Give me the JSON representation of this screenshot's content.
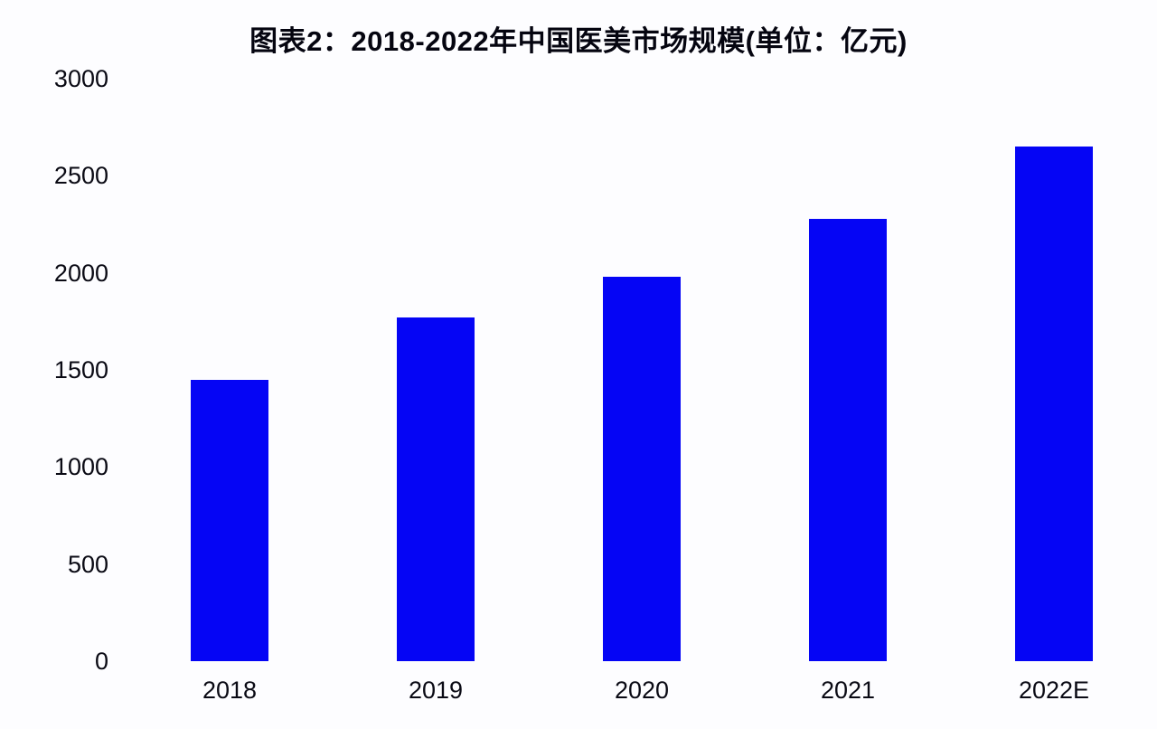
{
  "page": {
    "background_color": "#fdfdff",
    "text_color": "#0a0a14"
  },
  "chart_data": {
    "type": "bar",
    "title": "图表2：2018-2022年中国医美市场规模(单位：亿元)",
    "unit_label": "亿元",
    "categories": [
      "2018",
      "2019",
      "2020",
      "2021",
      "2022E"
    ],
    "values": [
      1450,
      1770,
      1980,
      2280,
      2650
    ],
    "xlabel": "",
    "ylabel": "",
    "ylim": [
      0,
      3000
    ],
    "yticks": [
      0,
      500,
      1000,
      1500,
      2000,
      2500,
      3000
    ],
    "grid": false,
    "legend_position": "none",
    "bar_color": "#0505f5"
  }
}
